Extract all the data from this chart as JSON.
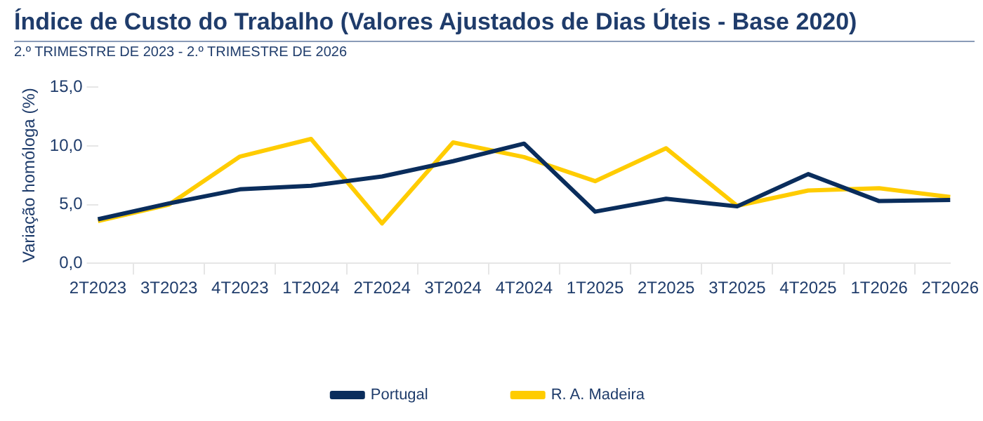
{
  "chart_data": {
    "type": "line",
    "title": "Índice de Custo do Trabalho (Valores Ajustados de Dias Úteis - Base 2020)",
    "subtitle": "2.º TRIMESTRE DE 2023 - 2.º TRIMESTRE DE 2026",
    "ylabel": "Variação homóloga (%)",
    "categories": [
      "2T2023",
      "3T2023",
      "4T2023",
      "1T2024",
      "2T2024",
      "3T2024",
      "4T2024",
      "1T2025",
      "2T2025",
      "3T2025",
      "4T2025",
      "1T2026",
      "2T2026"
    ],
    "series": [
      {
        "name": "Portugal",
        "color": "#0a2d5c",
        "values": [
          3.75,
          5.1,
          6.3,
          6.6,
          7.4,
          8.7,
          10.2,
          4.4,
          5.5,
          4.85,
          7.6,
          5.3,
          5.4
        ]
      },
      {
        "name": "R. A. Madeira",
        "color": "#ffcc00",
        "values": [
          3.6,
          5.0,
          9.1,
          10.6,
          3.4,
          10.3,
          9.05,
          7.0,
          9.8,
          4.9,
          6.2,
          6.4,
          5.65
        ]
      }
    ],
    "ylim": [
      0,
      15
    ],
    "yticks": [
      {
        "value": 0,
        "label": "0,0"
      },
      {
        "value": 5,
        "label": "5,0"
      },
      {
        "value": 10,
        "label": "10,0"
      },
      {
        "value": 15,
        "label": "15,0"
      }
    ],
    "grid": false,
    "legend": "bottom",
    "marker": "none",
    "line_style": "solid"
  }
}
